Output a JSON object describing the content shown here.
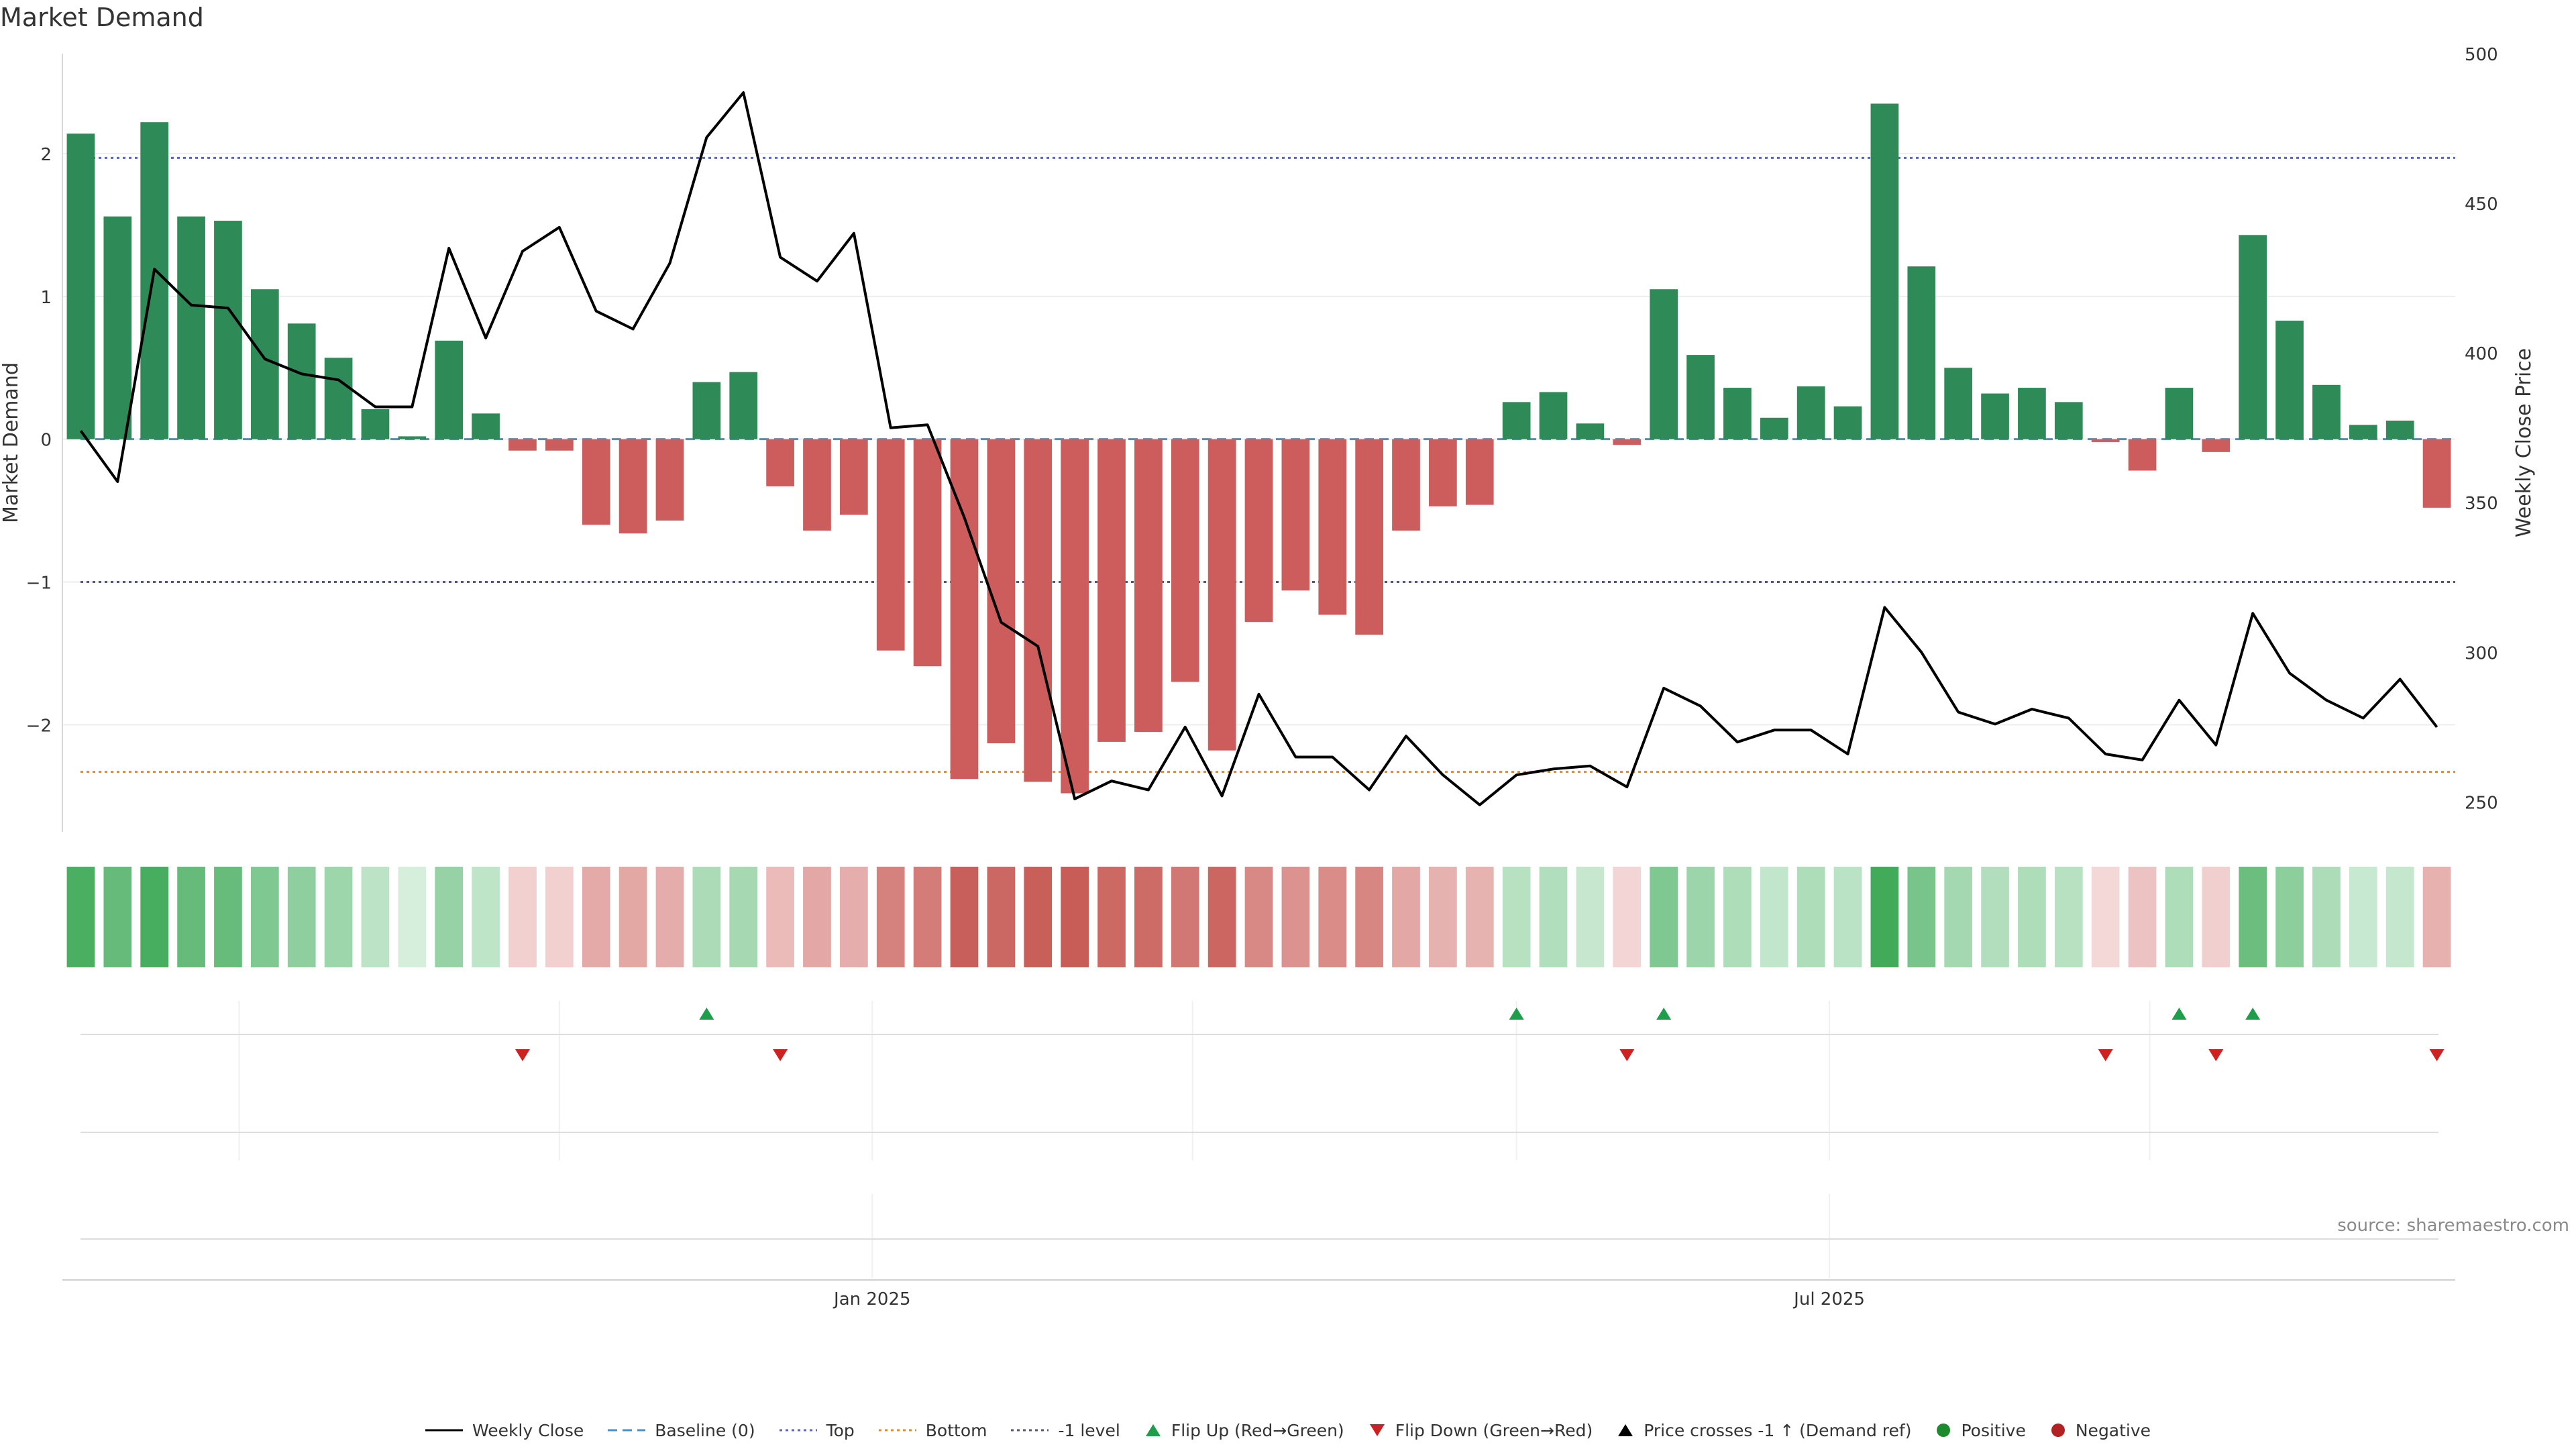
{
  "chart_data": {
    "type": "bar",
    "title": "Market Demand",
    "ylabel": "Market Demand",
    "y2label": "Weekly Close Price",
    "ylim": [
      -2.75,
      2.7
    ],
    "y2lim": [
      240,
      500
    ],
    "yticks": [
      -2,
      -1,
      0,
      1,
      2
    ],
    "ytick_labels": [
      "−2",
      "−1",
      "0",
      "1",
      "2"
    ],
    "y2ticks": [
      250,
      300,
      350,
      400,
      450,
      500
    ],
    "xtick_labels": [
      {
        "index": 21.5,
        "label": "Jan 2025"
      },
      {
        "index": 47.5,
        "label": "Jul 2025"
      }
    ],
    "levels": {
      "top": 1.97,
      "bottom": -2.33,
      "minus_one": -1,
      "baseline": 0
    },
    "weeks": 65,
    "demand": [
      2.14,
      1.56,
      2.22,
      1.56,
      1.53,
      1.05,
      0.81,
      0.57,
      0.21,
      0.02,
      0.69,
      0.18,
      -0.08,
      -0.08,
      -0.6,
      -0.66,
      -0.57,
      0.4,
      0.47,
      -0.33,
      -0.64,
      -0.53,
      -1.48,
      -1.59,
      -2.38,
      -2.13,
      -2.4,
      -2.48,
      -2.12,
      -2.05,
      -1.7,
      -2.18,
      -1.28,
      -1.06,
      -1.23,
      -1.37,
      -0.64,
      -0.47,
      -0.46,
      0.26,
      0.33,
      0.11,
      -0.04,
      1.05,
      0.59,
      0.36,
      0.15,
      0.37,
      0.23,
      2.35,
      1.21,
      0.5,
      0.32,
      0.36,
      0.26,
      -0.02,
      -0.22,
      0.36,
      -0.09,
      1.43,
      0.83,
      0.38,
      0.1,
      0.13,
      -0.48
    ],
    "price": [
      374,
      357,
      428,
      416,
      415,
      398,
      393,
      391,
      382,
      382,
      435,
      405,
      434,
      442,
      414,
      408,
      430,
      472,
      487,
      432,
      424,
      440,
      375,
      376,
      345,
      310,
      302,
      251,
      257,
      254,
      275,
      252,
      286,
      265,
      265,
      254,
      272,
      259,
      249,
      259,
      261,
      262,
      255,
      288,
      282,
      270,
      274,
      274,
      266,
      315,
      300,
      280,
      276,
      281,
      278,
      266,
      264,
      284,
      269,
      313,
      293,
      284,
      278,
      291,
      275
    ],
    "flip_up": [
      17,
      39,
      43,
      57,
      59
    ],
    "flip_down": [
      12,
      19,
      42,
      55,
      58,
      64
    ],
    "series": [
      {
        "name": "Market Demand",
        "values_ref": "demand"
      },
      {
        "name": "Weekly Close",
        "values_ref": "price"
      }
    ]
  },
  "legend": {
    "weekly_close": "Weekly Close",
    "baseline": "Baseline (0)",
    "top": "Top",
    "bottom": "Bottom",
    "minus_one": "-1 level",
    "flip_up": "Flip Up (Red→Green)",
    "flip_down": "Flip Down (Green→Red)",
    "price_cross": "Price crosses -1 ↑ (Demand ref)",
    "positive": "Positive",
    "negative": "Negative"
  },
  "source": "source: sharemaestro.com",
  "colors": {
    "positive_bar": "#2e8b57",
    "negative_bar": "#cd5c5c",
    "price_line": "#000000",
    "baseline": "#4a90c8",
    "top": "#5566bb",
    "bottom": "#e08a2a",
    "minus_one": "#555577",
    "flip_up": "#1e9e4a",
    "flip_down": "#cc2222",
    "positive_dot": "#1e8a2e",
    "negative_dot": "#b22222"
  }
}
